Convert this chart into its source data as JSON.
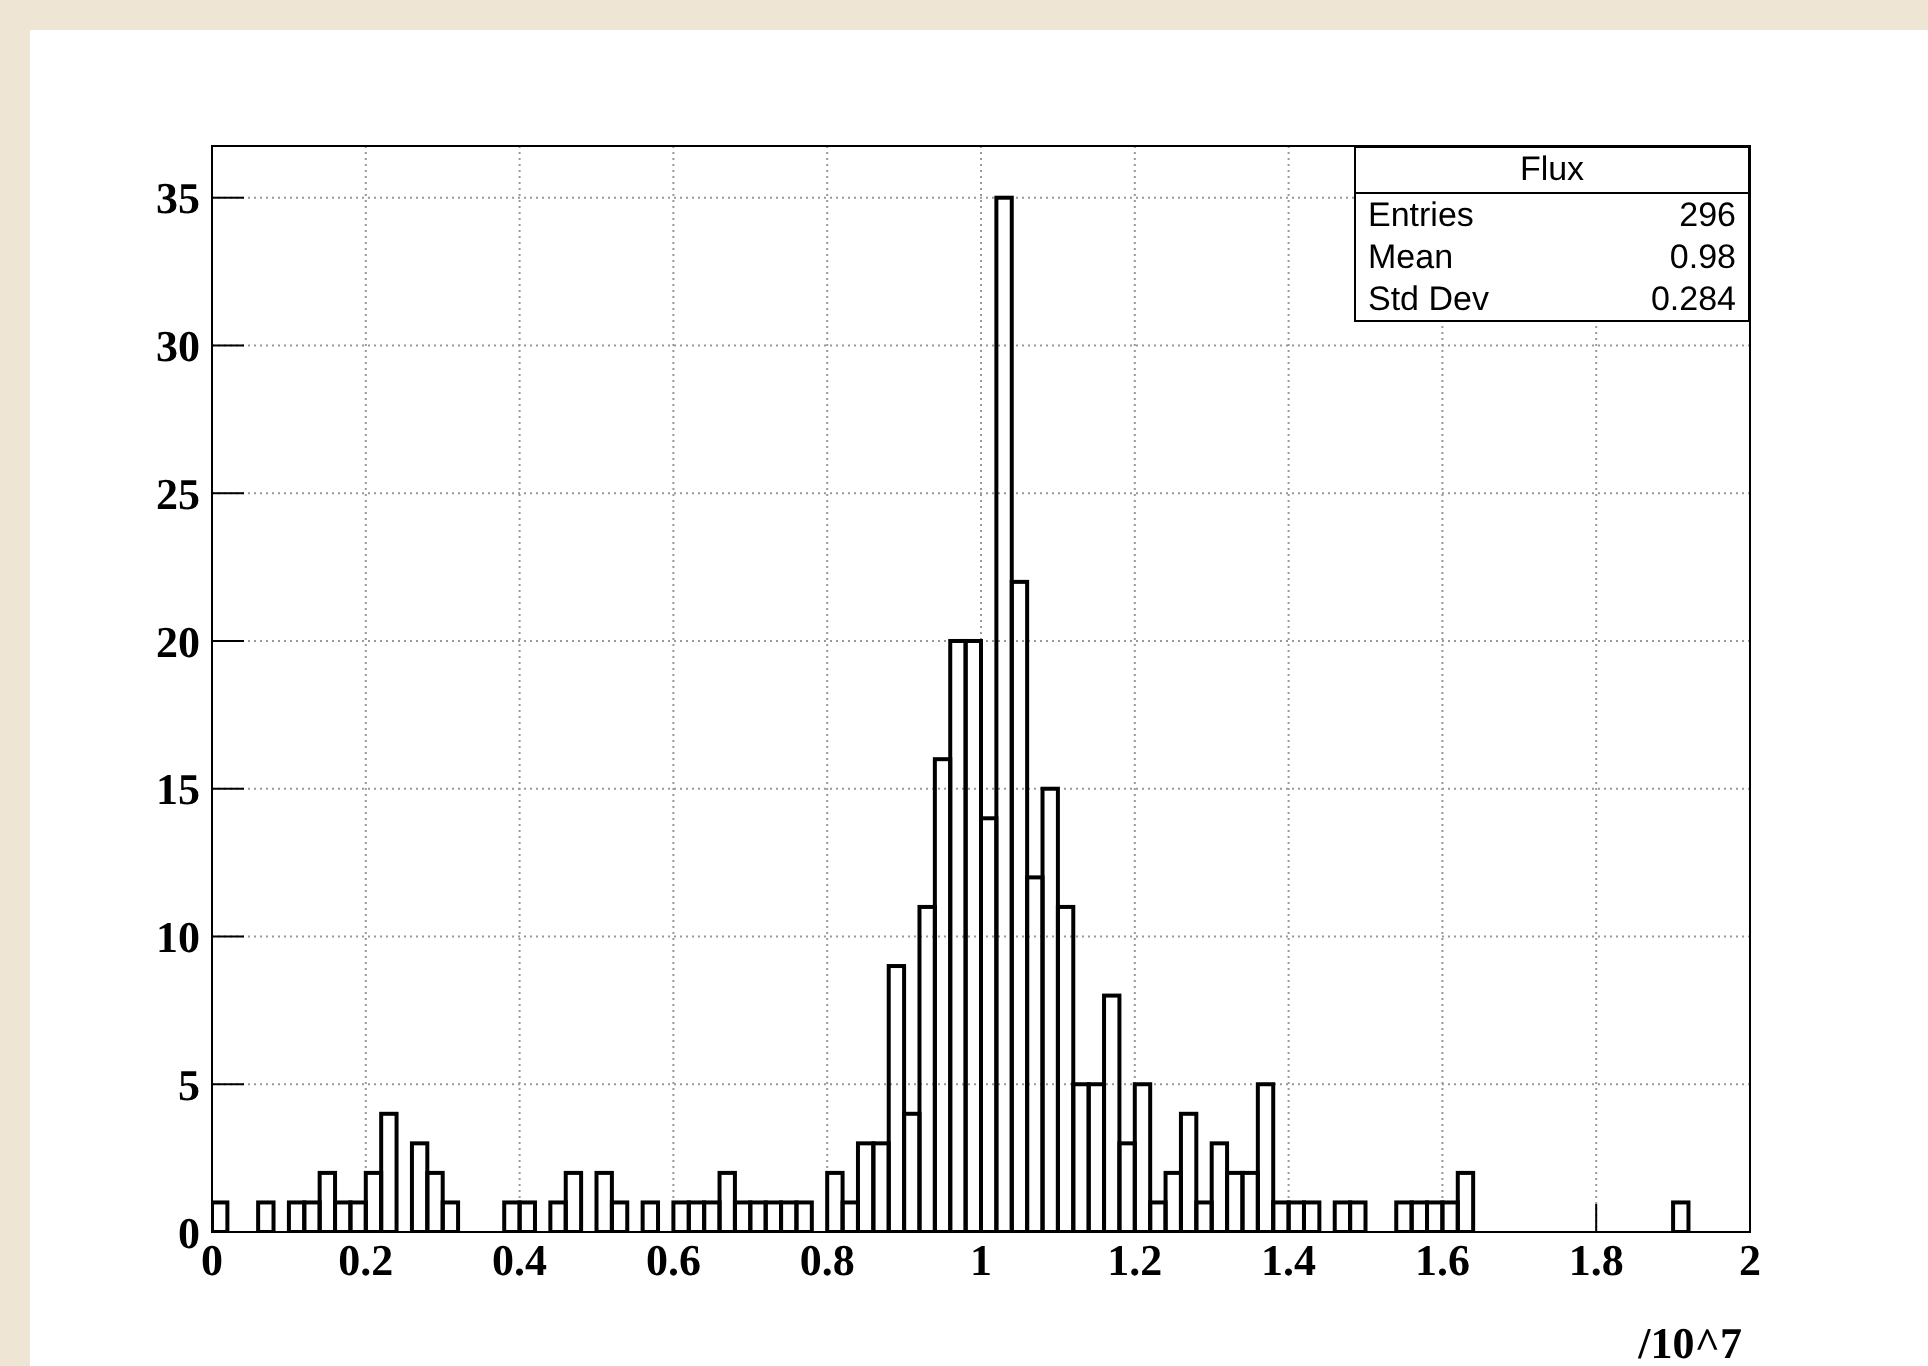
{
  "chart_data": {
    "type": "histogram",
    "title": "Flux",
    "xlabel": "/10^7",
    "bins": [
      0,
      0.02,
      0.04,
      0.06,
      0.08,
      0.1,
      0.12,
      0.14,
      0.16,
      0.18,
      0.2,
      0.22,
      0.24,
      0.26,
      0.28,
      0.3,
      0.32,
      0.34,
      0.36,
      0.38,
      0.4,
      0.42,
      0.44,
      0.46,
      0.48,
      0.5,
      0.52,
      0.54,
      0.56,
      0.58,
      0.6,
      0.62,
      0.64,
      0.66,
      0.68,
      0.7,
      0.72,
      0.74,
      0.76,
      0.78,
      0.8,
      0.82,
      0.84,
      0.86,
      0.88,
      0.9,
      0.92,
      0.94,
      0.96,
      0.98,
      1,
      1.02,
      1.04,
      1.06,
      1.08,
      1.1,
      1.12,
      1.14,
      1.16,
      1.18,
      1.2,
      1.22,
      1.24,
      1.26,
      1.28,
      1.3,
      1.32,
      1.34,
      1.36,
      1.38,
      1.4,
      1.42,
      1.44,
      1.46,
      1.48,
      1.5,
      1.52,
      1.54,
      1.56,
      1.58,
      1.6,
      1.62,
      1.64,
      1.66,
      1.68,
      1.7,
      1.72,
      1.74,
      1.76,
      1.78,
      1.8,
      1.82,
      1.84,
      1.86,
      1.88,
      1.9,
      1.92,
      1.94,
      1.96,
      1.98,
      2
    ],
    "values": [
      1,
      0,
      0,
      1,
      0,
      1,
      1,
      2,
      1,
      1,
      2,
      4,
      0,
      3,
      2,
      1,
      0,
      0,
      0,
      1,
      1,
      0,
      1,
      2,
      0,
      2,
      1,
      0,
      1,
      0,
      1,
      1,
      1,
      2,
      1,
      1,
      1,
      1,
      1,
      0,
      2,
      1,
      3,
      3,
      9,
      4,
      11,
      16,
      20,
      20,
      14,
      35,
      22,
      12,
      15,
      11,
      5,
      5,
      8,
      3,
      5,
      1,
      2,
      4,
      1,
      3,
      2,
      2,
      5,
      1,
      1,
      1,
      0,
      1,
      1,
      0,
      0,
      1,
      1,
      1,
      1,
      2,
      0,
      0,
      0,
      0,
      0,
      0,
      0,
      0,
      0,
      0,
      0,
      0,
      0,
      1,
      0,
      0,
      0,
      0
    ],
    "color": "#000000",
    "xlim": [
      0,
      2
    ],
    "xticks": [
      0,
      0.2,
      0.4,
      0.6,
      0.8,
      1,
      1.2,
      1.4,
      1.6,
      1.8,
      2
    ],
    "ylim": [
      0,
      36.75
    ],
    "yticks": [
      0,
      5,
      10,
      15,
      20,
      25,
      30,
      35
    ],
    "grid": true,
    "annotations": [
      "Entries 296",
      "Mean 0.98",
      "Std Dev 0.284"
    ]
  }
}
